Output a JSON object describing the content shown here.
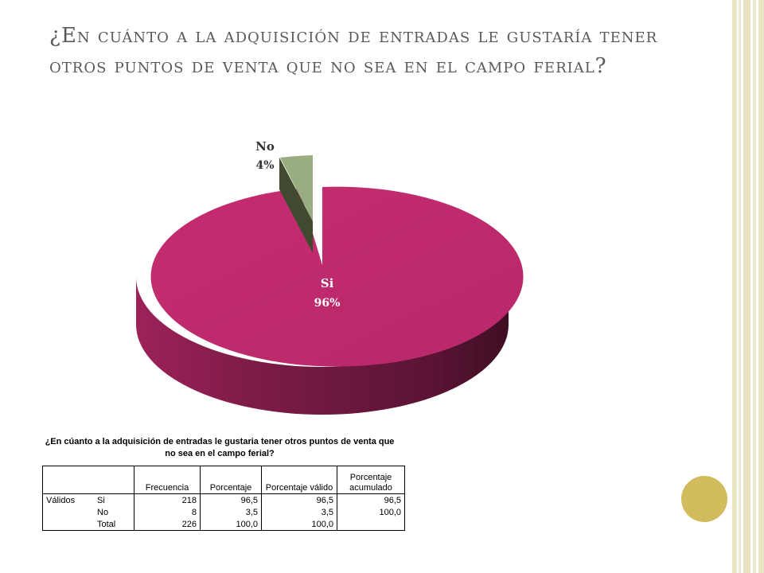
{
  "title": "¿En cuánto a la adquisición de entradas le gustaría tener otros puntos de venta que no sea en el campo ferial?",
  "chart_data": {
    "type": "pie",
    "slices": [
      {
        "label": "Si",
        "pct_label": "96%",
        "value": 96,
        "color": "#be2a6c"
      },
      {
        "label": "No",
        "pct_label": "4%",
        "value": 4,
        "color": "#9aad80"
      }
    ],
    "style": "3d-exploded"
  },
  "table": {
    "title": "¿En cúanto a la adquisición de entradas le gustaria tener otros puntos de venta que no sea en el campo ferial?",
    "headers": [
      "",
      "",
      "Frecuencia",
      "Porcentaje",
      "Porcentaje válido",
      "Porcentaje acumulado"
    ],
    "rows": [
      {
        "group": "Válidos",
        "label": "Si",
        "frecuencia": "218",
        "porcentaje": "96,5",
        "valido": "96,5",
        "acumulado": "96,5"
      },
      {
        "group": "",
        "label": "No",
        "frecuencia": "8",
        "porcentaje": "3,5",
        "valido": "3,5",
        "acumulado": "100,0"
      },
      {
        "group": "",
        "label": "Total",
        "frecuencia": "226",
        "porcentaje": "100,0",
        "valido": "100,0",
        "acumulado": ""
      }
    ]
  }
}
